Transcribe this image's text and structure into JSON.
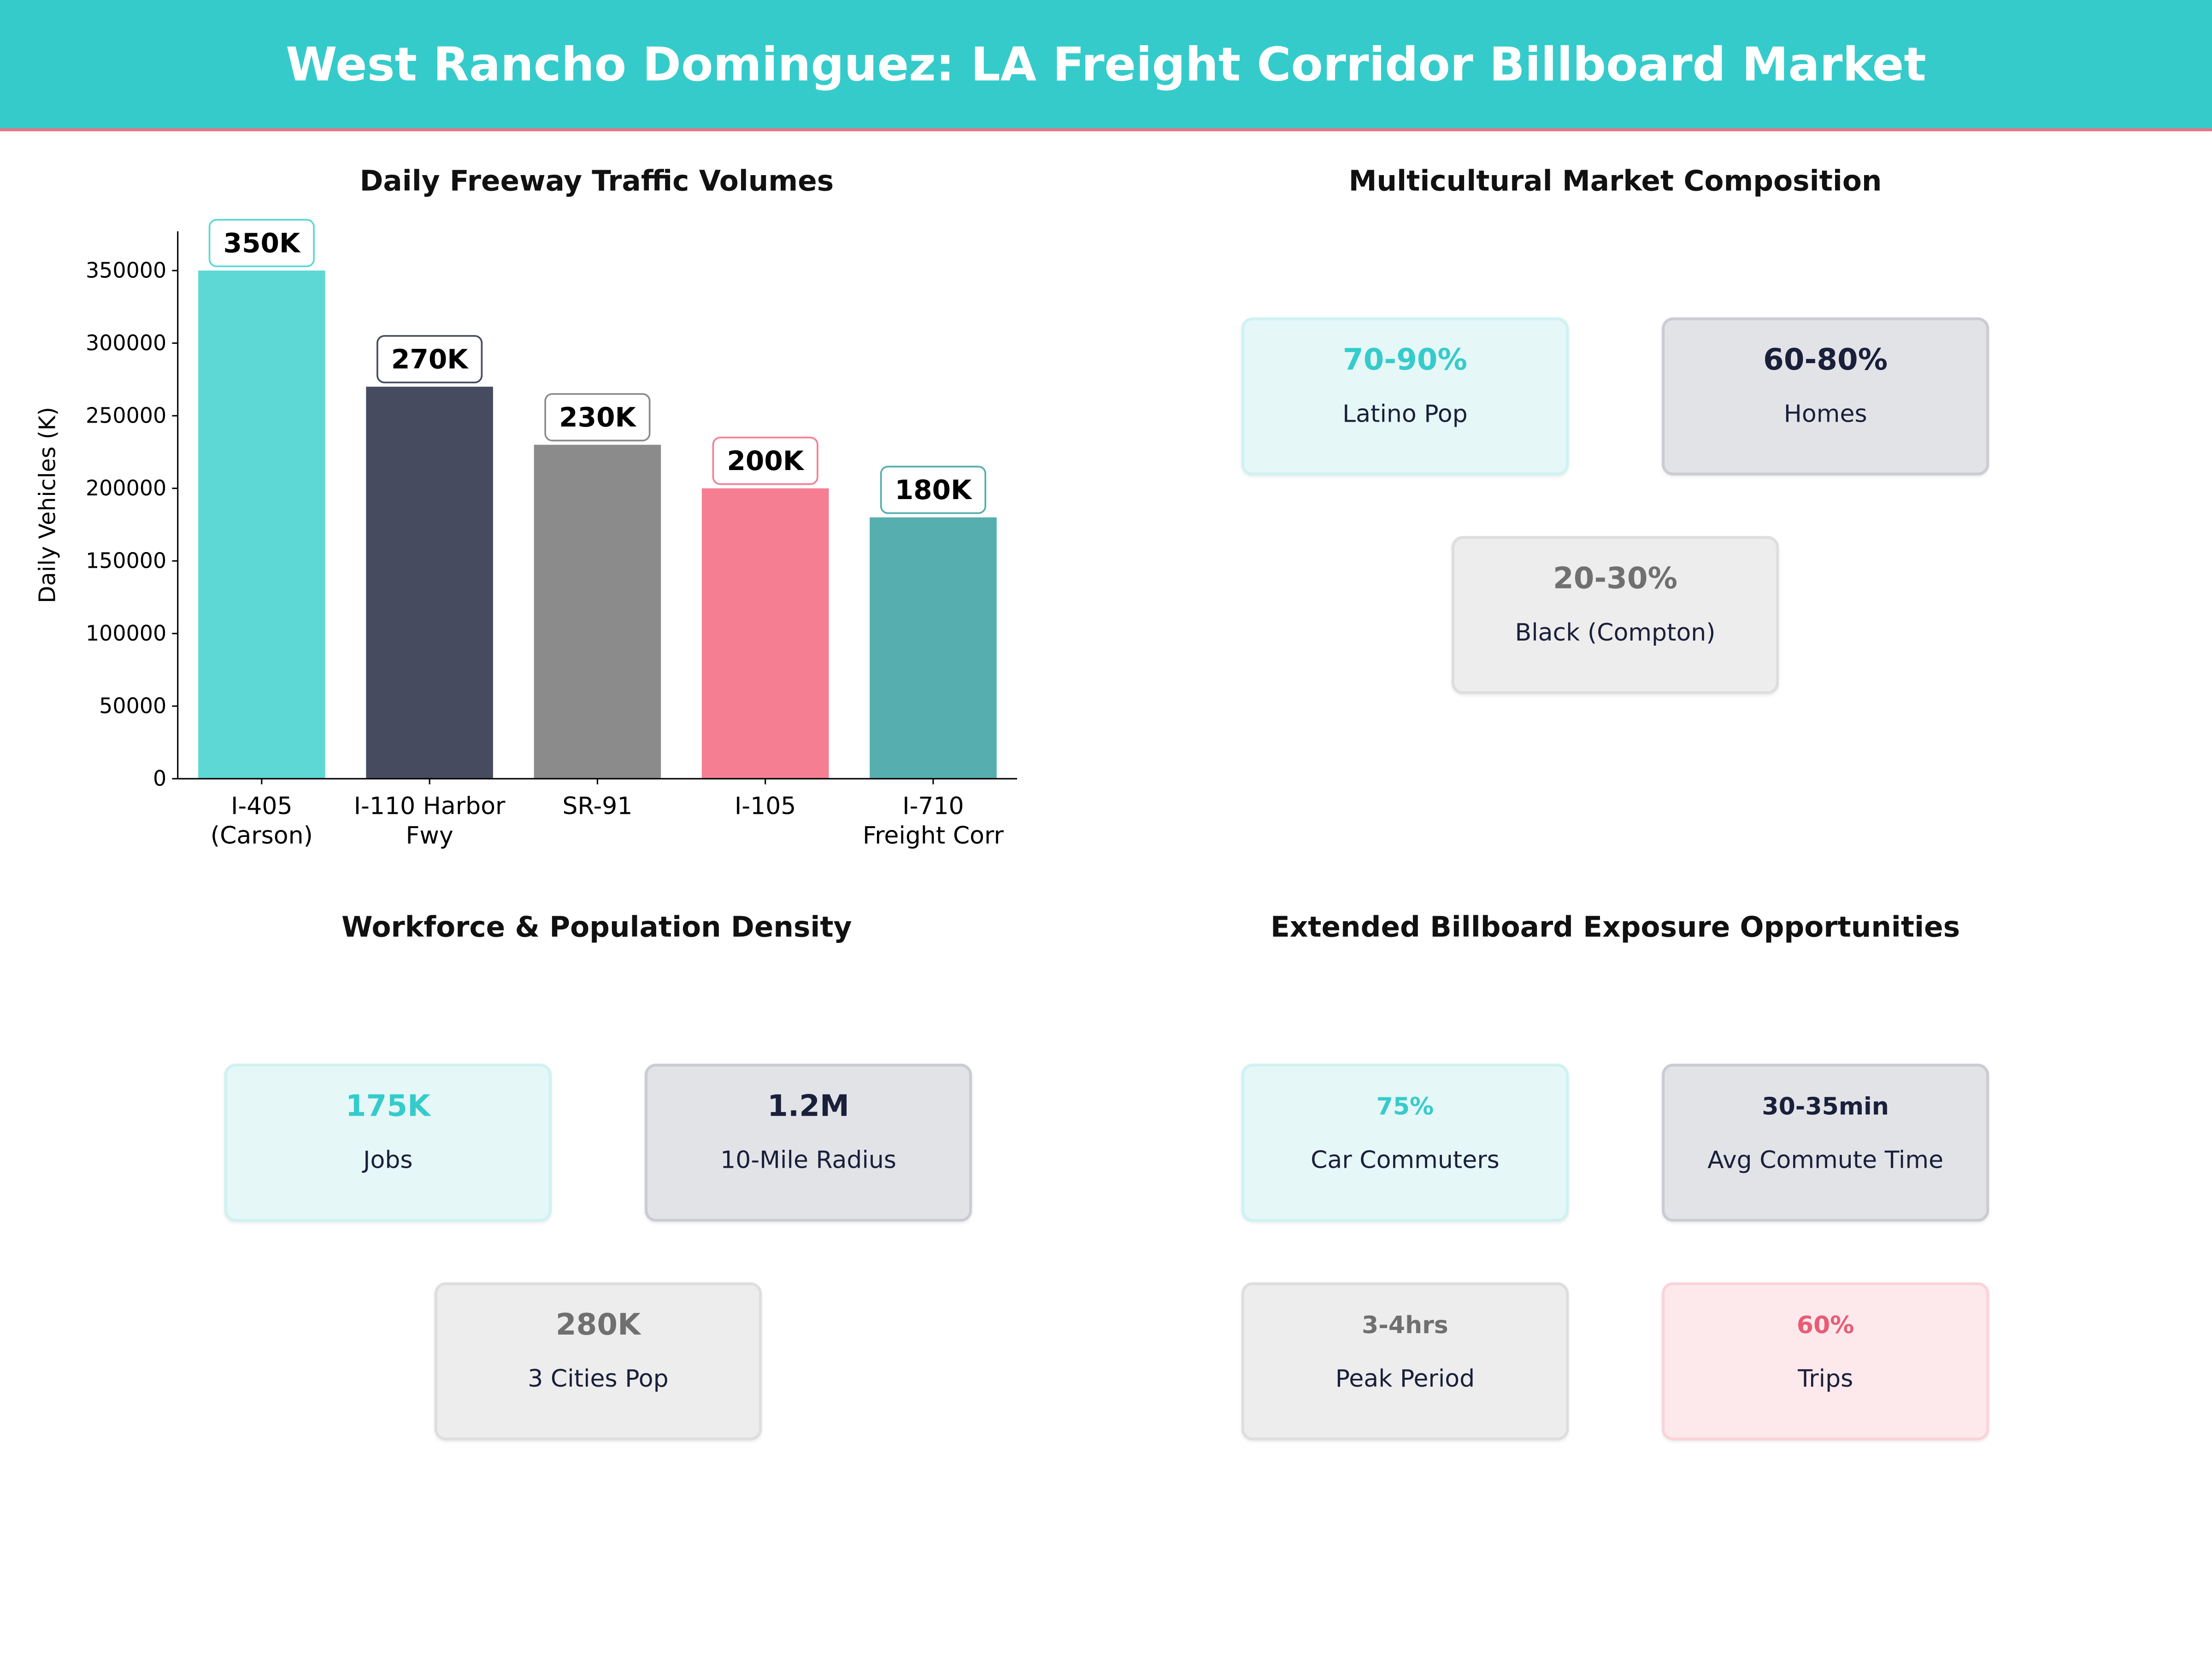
{
  "title": "West Rancho Dominguez: LA Freight Corridor Billboard Market",
  "colors": {
    "header": "#36CBCB",
    "accent_line": "#F07080"
  },
  "chart_data": {
    "type": "bar",
    "title": "Daily Freeway Traffic Volumes",
    "xlabel": "",
    "ylabel": "Daily Vehicles (K)",
    "categories": [
      "I-405\n(Carson)",
      "I-110 Harbor\nFwy",
      "SR-91",
      "I-105",
      "I-710\nFreight Corr"
    ],
    "values": [
      350000,
      270000,
      230000,
      200000,
      180000
    ],
    "data_labels": [
      "350K",
      "270K",
      "230K",
      "200K",
      "180K"
    ],
    "colors": [
      "#5DD8D5",
      "#464B60",
      "#8B8B8B",
      "#F57E93",
      "#56AEAE"
    ],
    "ylim": [
      0,
      377000
    ],
    "yticks": [
      0,
      50000,
      100000,
      150000,
      200000,
      250000,
      300000,
      350000
    ],
    "grid": false
  },
  "market": {
    "title": "Multicultural Market Composition",
    "cards": [
      {
        "value": "70-90%",
        "label": "Latino Pop"
      },
      {
        "value": "60-80%",
        "label": "Homes"
      },
      {
        "value": "20-30%",
        "label": "Black (Compton)"
      }
    ]
  },
  "workforce": {
    "title": "Workforce & Population Density",
    "cards": [
      {
        "value": "175K",
        "label": "Jobs"
      },
      {
        "value": "1.2M",
        "label": "10-Mile Radius"
      },
      {
        "value": "280K",
        "label": "3 Cities Pop"
      }
    ]
  },
  "exposure": {
    "title": "Extended Billboard Exposure Opportunities",
    "cards": [
      {
        "value": "75%",
        "label": "Car Commuters"
      },
      {
        "value": "30-35min",
        "label": "Avg Commute Time"
      },
      {
        "value": "3-4hrs",
        "label": "Peak Period"
      },
      {
        "value": "60%",
        "label": "Trips"
      }
    ]
  }
}
